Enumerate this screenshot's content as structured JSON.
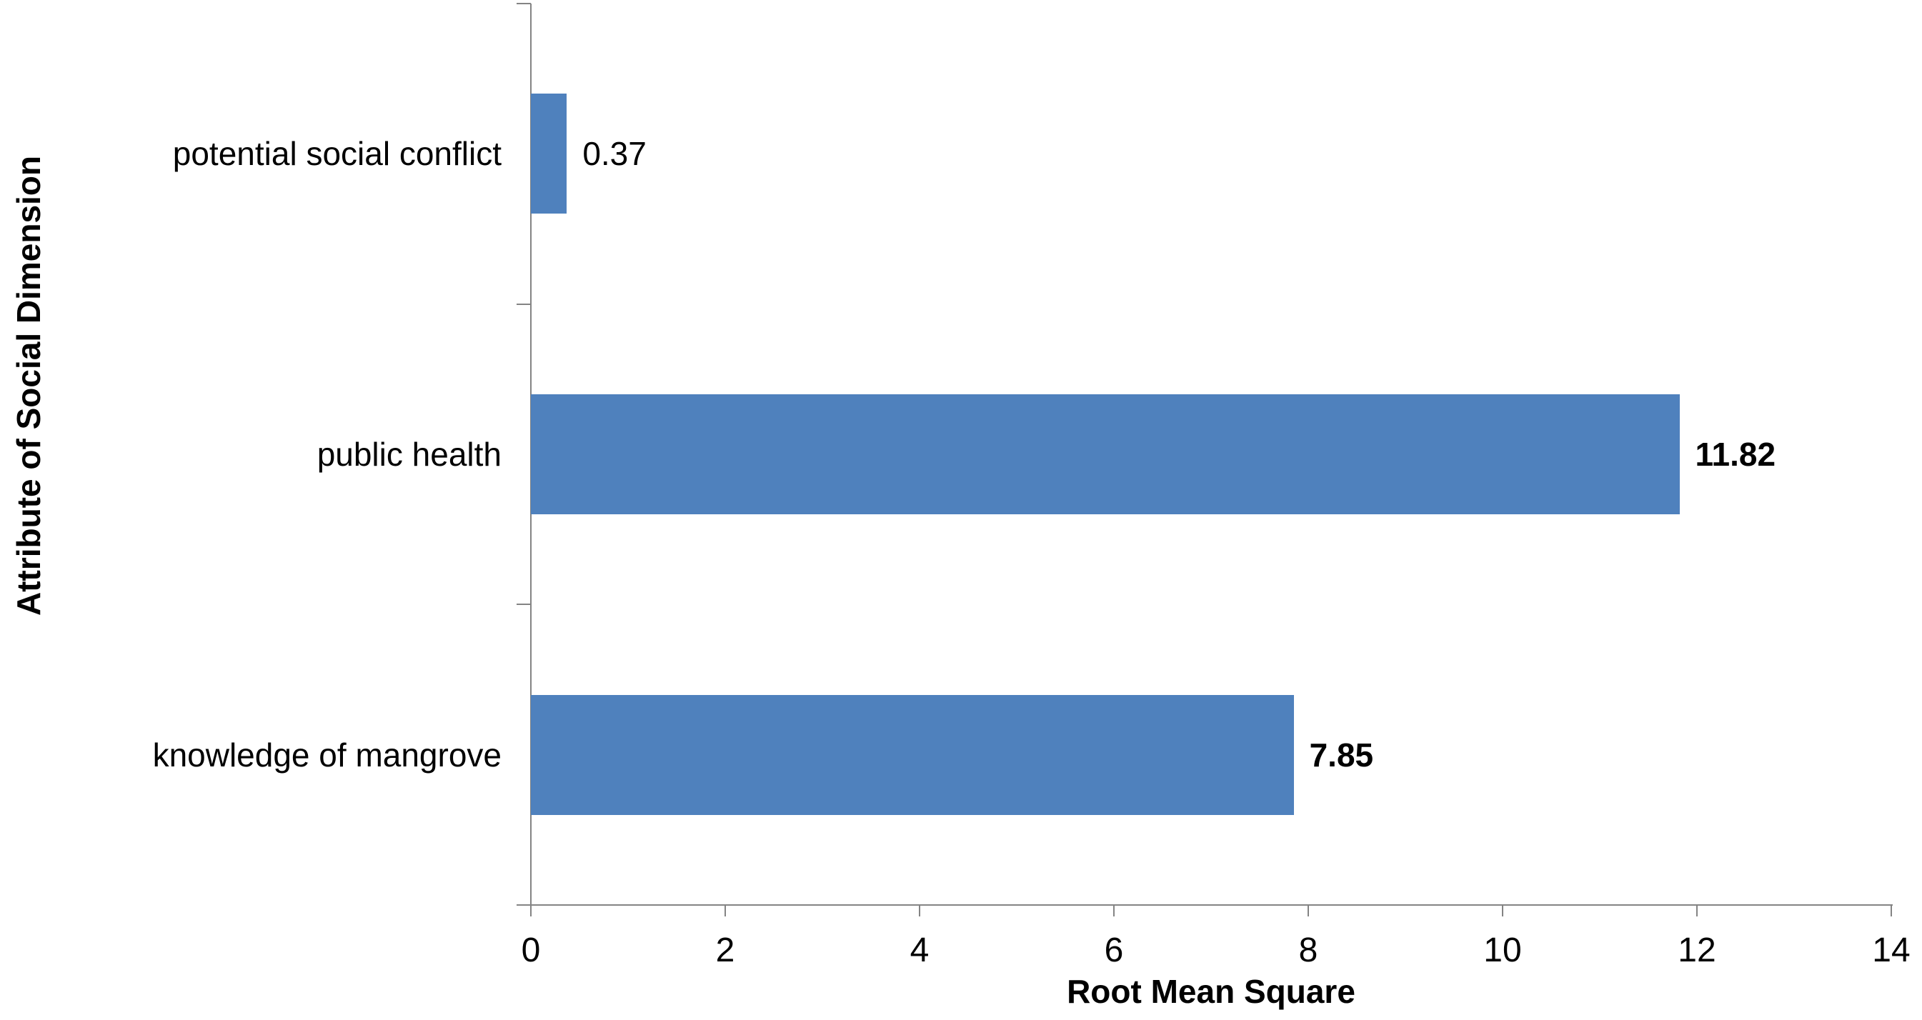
{
  "chart_data": {
    "type": "bar",
    "orientation": "horizontal",
    "title": "",
    "xlabel": "Root Mean Square",
    "ylabel": "Attribute of Social Dimension",
    "categories": [
      "potential social conflict",
      "public health",
      "knowledge of mangrove"
    ],
    "values": [
      0.37,
      11.82,
      7.85
    ],
    "data_labels": [
      {
        "text": "0.37",
        "bold": false
      },
      {
        "text": "11.82",
        "bold": true
      },
      {
        "text": "7.85",
        "bold": true
      }
    ],
    "xlim": [
      0,
      14
    ],
    "xticks": [
      "0",
      "2",
      "4",
      "6",
      "8",
      "10",
      "12",
      "14"
    ],
    "grid": false,
    "legend_position": "none",
    "colors": {
      "bar": "#4F81BD",
      "axis": "#848484",
      "text": "#000000",
      "background": "#FFFFFF"
    }
  }
}
